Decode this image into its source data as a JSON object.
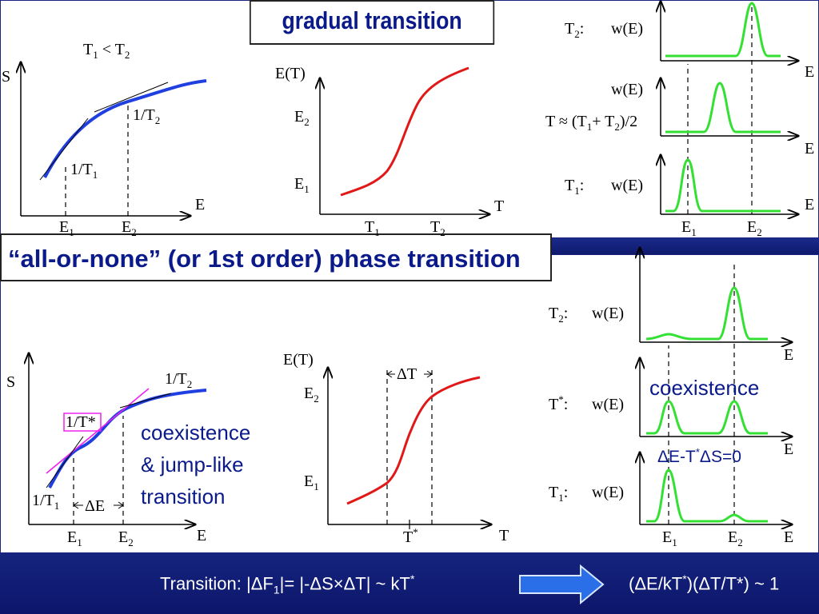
{
  "titles": {
    "top": "gradual transition",
    "middle": "“all-or-none” (or 1st order) phase transition"
  },
  "top_left_plot": {
    "y_axis": "S",
    "x_axis": "E",
    "condition": "T",
    "condition_sub1": "1",
    "condition_mid": " < T",
    "condition_sub2": "2",
    "slope1": "1/T",
    "slope1_sub": "1",
    "slope2": "1/T",
    "slope2_sub": "2",
    "tick1": "E",
    "tick1_sub": "1",
    "tick2": "E",
    "tick2_sub": "2"
  },
  "top_mid_plot": {
    "y_axis": "E(T)",
    "x_axis": "T",
    "ytick1": "E",
    "ytick1_sub": "1",
    "ytick2": "E",
    "ytick2_sub": "2",
    "xtick1": "T",
    "xtick1_sub": "1",
    "xtick2": "T",
    "xtick2_sub": "2"
  },
  "top_right_plot": {
    "row1_label": "T",
    "row1_sub": "2",
    "row1_suffix": ":",
    "row2_label_a": "T ≈ (T",
    "row2_sub1": "1",
    "row2_label_b": "+ T",
    "row2_sub2": "2",
    "row2_label_c": ")/2",
    "row3_label": "T",
    "row3_sub": "1",
    "row3_suffix": ":",
    "wE": "w(E)",
    "x_axis": "E",
    "tick1": "E",
    "tick1_sub": "1",
    "tick2": "E",
    "tick2_sub": "2"
  },
  "bottom_left_plot": {
    "y_axis": "S",
    "x_axis": "E",
    "slope_star": "1/T*",
    "slope1": "1/T",
    "slope1_sub": "1",
    "slope2": "1/T",
    "slope2_sub": "2",
    "delta_e": "ΔE",
    "tick1": "E",
    "tick1_sub": "1",
    "tick2": "E",
    "tick2_sub": "2",
    "note_line1": "coexistence",
    "note_line2": "& jump-like",
    "note_line3": "transition"
  },
  "bottom_mid_plot": {
    "y_axis": "E(T)",
    "x_axis": "T",
    "ytick1": "E",
    "ytick1_sub": "1",
    "ytick2": "E",
    "ytick2_sub": "2",
    "xtick": "T",
    "xtick_sup": "*",
    "delta_t": "ΔT"
  },
  "bottom_right_plot": {
    "row1_label": "T",
    "row1_sub": "2",
    "row1_suffix": ":",
    "row2_label": "T",
    "row2_sup": "*",
    "row2_suffix": ":",
    "row3_label": "T",
    "row3_sub": "1",
    "row3_suffix": ":",
    "wE": "w(E)",
    "x_axis": "E",
    "tick1": "E",
    "tick1_sub": "1",
    "tick2": "E",
    "tick2_sub": "2",
    "coexistence": "coexistence",
    "condition_a": "ΔE-T",
    "condition_sup": "*",
    "condition_b": "ΔS=0"
  },
  "footer": {
    "left_a": "Transition:   |ΔF",
    "left_sub": "1",
    "left_b": "|= |-ΔS×ΔT| ~ kT",
    "left_sup": "*",
    "right_a": "(ΔE/kT",
    "right_sup": "*",
    "right_b": ")(ΔT/T*) ~ 1"
  },
  "colors": {
    "entropy_curve": "#1f3fe0",
    "energy_curve": "#e01818",
    "distribution_curve": "#33e033",
    "tangent_pink": "#ee22ee",
    "title_text": "#0a1a8a",
    "band": "#16247f"
  }
}
